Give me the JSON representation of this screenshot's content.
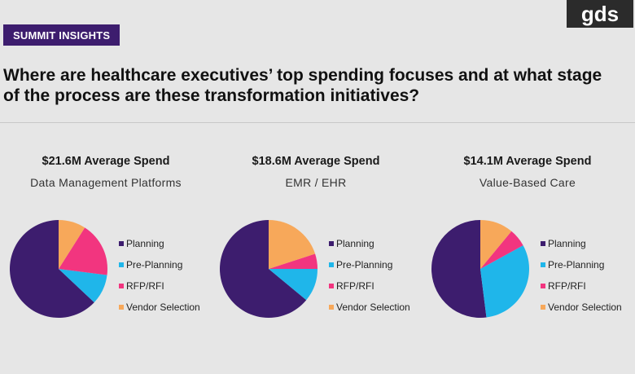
{
  "badge": "SUMMIT INSIGHTS",
  "logo": "gds",
  "headline": "Where are healthcare executives’ top spending focuses and at what stage of the process are these transformation initiatives?",
  "legend_labels": [
    "Planning",
    "Pre-Planning",
    "RFP/RFI",
    "Vendor Selection"
  ],
  "colors": {
    "Planning": "#3d1d6e",
    "Pre-Planning": "#1fb6ea",
    "RFP/RFI": "#f2357f",
    "Vendor Selection": "#f7a85a",
    "badge_bg": "#3d1d6e",
    "background": "#e6e6e6"
  },
  "chart_data": [
    {
      "type": "pie",
      "title": "$21.6M Average Spend",
      "subtitle": "Data Management Platforms",
      "categories": [
        "Planning",
        "Pre-Planning",
        "RFP/RFI",
        "Vendor Selection"
      ],
      "values": [
        63,
        10,
        18,
        9
      ]
    },
    {
      "type": "pie",
      "title": "$18.6M Average Spend",
      "subtitle": "EMR / EHR",
      "categories": [
        "Planning",
        "Pre-Planning",
        "RFP/RFI",
        "Vendor Selection"
      ],
      "values": [
        64,
        11,
        5,
        20
      ]
    },
    {
      "type": "pie",
      "title": "$14.1M Average Spend",
      "subtitle": "Value-Based Care",
      "categories": [
        "Planning",
        "Pre-Planning",
        "RFP/RFI",
        "Vendor Selection"
      ],
      "values": [
        52,
        31,
        6,
        11
      ]
    }
  ]
}
